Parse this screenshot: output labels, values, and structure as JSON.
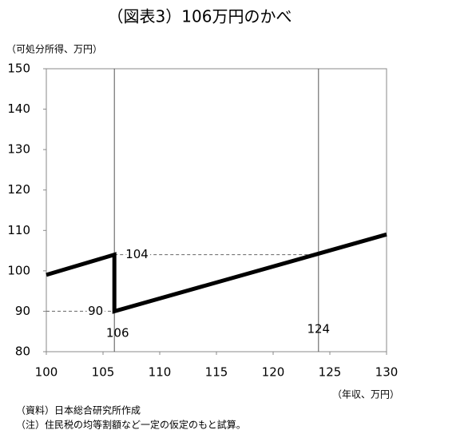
{
  "chart_data": {
    "type": "line",
    "title": "（図表3）106万円のかべ",
    "y_label": "（可処分所得、万円）",
    "x_label": "（年収、万円）",
    "notes": [
      "（資料）日本総合研究所作成",
      "（注）住民税の均等割額など一定の仮定のもと試算。"
    ],
    "x": [
      100,
      106,
      106,
      130
    ],
    "series": [
      {
        "color": "#000000",
        "values": [
          99,
          104,
          90,
          109
        ]
      }
    ],
    "xlim": [
      100,
      130
    ],
    "xticks": [
      100,
      105,
      110,
      115,
      120,
      125,
      130
    ],
    "ylim": [
      80,
      150
    ],
    "yticks": [
      80,
      90,
      100,
      110,
      120,
      130,
      140,
      150
    ],
    "vlines": [
      106,
      124
    ],
    "hlines": [
      {
        "y": 104,
        "x": [
          106,
          124
        ]
      },
      {
        "y": 90,
        "x": [
          100,
          106
        ]
      }
    ],
    "grid": false
  }
}
